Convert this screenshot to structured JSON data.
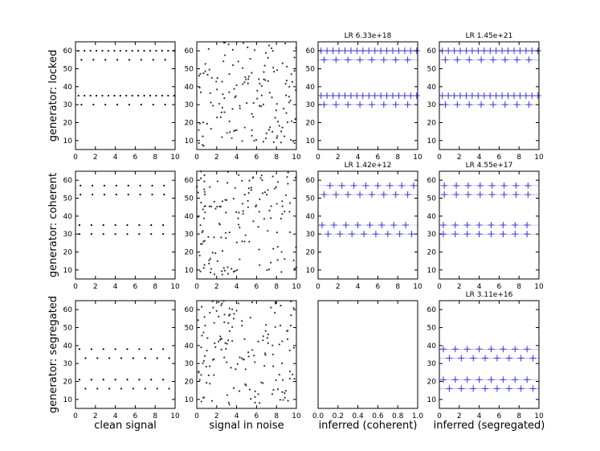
{
  "figure": {
    "row_labels": [
      "generator: locked",
      "generator: coherent",
      "generator: segregated"
    ],
    "col_labels": [
      "clean signal",
      "signal in noise",
      "inferred (coherent)",
      "inferred (segregated)"
    ],
    "colors": {
      "dots": "#000000",
      "noise": "#333333",
      "marker": "#3333dd",
      "axes": "#000000"
    }
  },
  "chart_data": [
    {
      "type": "scatter",
      "row": 0,
      "col": 0,
      "panel": "clean",
      "xlim": [
        0,
        10
      ],
      "ylim": [
        5,
        65
      ],
      "xticks": [
        0,
        2,
        4,
        6,
        8,
        10
      ],
      "yticks": [
        10,
        20,
        30,
        40,
        50,
        60
      ],
      "lr": "",
      "streams": [
        {
          "y": 60,
          "t0": 0.3,
          "dt": 0.6
        },
        {
          "y": 55,
          "t0": 0.6,
          "dt": 1.2
        },
        {
          "y": 35,
          "t0": 0.3,
          "dt": 0.6
        },
        {
          "y": 30,
          "t0": 0.6,
          "dt": 1.2
        }
      ]
    },
    {
      "type": "scatter",
      "row": 0,
      "col": 1,
      "panel": "noise",
      "xlim": [
        0,
        10
      ],
      "ylim": [
        5,
        65
      ],
      "xticks": [
        0,
        2,
        4,
        6,
        8,
        10
      ],
      "yticks": [
        10,
        20,
        30,
        40,
        50,
        60
      ],
      "lr": "",
      "n_noise": 150,
      "seed": 11
    },
    {
      "type": "scatter",
      "row": 0,
      "col": 2,
      "panel": "inferred",
      "xlim": [
        0,
        10
      ],
      "ylim": [
        5,
        65
      ],
      "xticks": [
        0,
        2,
        4,
        6,
        8,
        10
      ],
      "yticks": [
        10,
        20,
        30,
        40,
        50,
        60
      ],
      "lr": "LR 6.33e+18",
      "streams": [
        {
          "y": 60,
          "t0": 0.3,
          "dt": 0.6
        },
        {
          "y": 55,
          "t0": 0.6,
          "dt": 1.2
        },
        {
          "y": 35,
          "t0": 0.3,
          "dt": 0.6
        },
        {
          "y": 30,
          "t0": 0.6,
          "dt": 1.2
        }
      ]
    },
    {
      "type": "scatter",
      "row": 0,
      "col": 3,
      "panel": "inferred",
      "xlim": [
        0,
        10
      ],
      "ylim": [
        5,
        65
      ],
      "xticks": [
        0,
        2,
        4,
        6,
        8,
        10
      ],
      "yticks": [
        10,
        20,
        30,
        40,
        50,
        60
      ],
      "lr": "LR 1.45e+21",
      "streams": [
        {
          "y": 60,
          "t0": 0.3,
          "dt": 0.6
        },
        {
          "y": 55,
          "t0": 0.6,
          "dt": 1.2
        },
        {
          "y": 35,
          "t0": 0.3,
          "dt": 0.6
        },
        {
          "y": 30,
          "t0": 0.6,
          "dt": 1.2
        }
      ]
    },
    {
      "type": "scatter",
      "row": 1,
      "col": 0,
      "panel": "clean",
      "xlim": [
        0,
        10
      ],
      "ylim": [
        5,
        65
      ],
      "xticks": [
        0,
        2,
        4,
        6,
        8,
        10
      ],
      "yticks": [
        10,
        20,
        30,
        40,
        50,
        60
      ],
      "lr": "",
      "streams": [
        {
          "y": 57,
          "t0": 0.5,
          "dt": 1.2
        },
        {
          "y": 52,
          "t0": 0.5,
          "dt": 1.2
        },
        {
          "y": 35,
          "t0": 0.4,
          "dt": 1.2
        },
        {
          "y": 30,
          "t0": 0.4,
          "dt": 1.2
        }
      ]
    },
    {
      "type": "scatter",
      "row": 1,
      "col": 1,
      "panel": "noise",
      "xlim": [
        0,
        10
      ],
      "ylim": [
        5,
        65
      ],
      "xticks": [
        0,
        2,
        4,
        6,
        8,
        10
      ],
      "yticks": [
        10,
        20,
        30,
        40,
        50,
        60
      ],
      "lr": "",
      "n_noise": 150,
      "seed": 23
    },
    {
      "type": "scatter",
      "row": 1,
      "col": 2,
      "panel": "inferred",
      "xlim": [
        0,
        10
      ],
      "ylim": [
        5,
        65
      ],
      "xticks": [
        0,
        2,
        4,
        6,
        8,
        10
      ],
      "yticks": [
        10,
        20,
        30,
        40,
        50,
        60
      ],
      "lr": "LR 1.42e+12",
      "streams": [
        {
          "y": 57,
          "t0": 1.2,
          "dt": 1.2
        },
        {
          "y": 52,
          "t0": 0.6,
          "dt": 1.2
        },
        {
          "y": 35,
          "t0": 0.4,
          "dt": 1.2
        },
        {
          "y": 30,
          "t0": 1.0,
          "dt": 1.2
        }
      ]
    },
    {
      "type": "scatter",
      "row": 1,
      "col": 3,
      "panel": "inferred",
      "xlim": [
        0,
        10
      ],
      "ylim": [
        5,
        65
      ],
      "xticks": [
        0,
        2,
        4,
        6,
        8,
        10
      ],
      "yticks": [
        10,
        20,
        30,
        40,
        50,
        60
      ],
      "lr": "LR 4.55e+17",
      "streams": [
        {
          "y": 57,
          "t0": 0.5,
          "dt": 1.2
        },
        {
          "y": 52,
          "t0": 0.5,
          "dt": 1.2
        },
        {
          "y": 35,
          "t0": 0.4,
          "dt": 1.2
        },
        {
          "y": 30,
          "t0": 0.4,
          "dt": 1.2
        }
      ]
    },
    {
      "type": "scatter",
      "row": 2,
      "col": 0,
      "panel": "clean",
      "xlim": [
        0,
        10
      ],
      "ylim": [
        5,
        65
      ],
      "xticks": [
        0,
        2,
        4,
        6,
        8,
        10
      ],
      "yticks": [
        10,
        20,
        30,
        40,
        50,
        60
      ],
      "lr": "",
      "streams": [
        {
          "y": 38,
          "t0": 0.4,
          "dt": 1.2
        },
        {
          "y": 33,
          "t0": 1.0,
          "dt": 1.2
        },
        {
          "y": 21,
          "t0": 0.4,
          "dt": 1.2
        },
        {
          "y": 16,
          "t0": 1.0,
          "dt": 1.2
        }
      ]
    },
    {
      "type": "scatter",
      "row": 2,
      "col": 1,
      "panel": "noise",
      "xlim": [
        0,
        10
      ],
      "ylim": [
        5,
        65
      ],
      "xticks": [
        0,
        2,
        4,
        6,
        8,
        10
      ],
      "yticks": [
        10,
        20,
        30,
        40,
        50,
        60
      ],
      "lr": "",
      "n_noise": 150,
      "seed": 37
    },
    {
      "type": "scatter",
      "row": 2,
      "col": 2,
      "panel": "empty",
      "xlim": [
        0,
        1
      ],
      "ylim": [
        0,
        1
      ],
      "xticks": [
        "0.0",
        "0.2",
        "0.4",
        "0.6",
        "0.8",
        "1.0"
      ],
      "yticks": [],
      "lr": "",
      "streams": []
    },
    {
      "type": "scatter",
      "row": 2,
      "col": 3,
      "panel": "inferred",
      "xlim": [
        0,
        10
      ],
      "ylim": [
        5,
        65
      ],
      "xticks": [
        0,
        2,
        4,
        6,
        8,
        10
      ],
      "yticks": [
        10,
        20,
        30,
        40,
        50,
        60
      ],
      "lr": "LR 3.11e+16",
      "streams": [
        {
          "y": 38,
          "t0": 0.4,
          "dt": 1.2
        },
        {
          "y": 33,
          "t0": 1.0,
          "dt": 1.2
        },
        {
          "y": 21,
          "t0": 0.4,
          "dt": 1.2
        },
        {
          "y": 16,
          "t0": 1.0,
          "dt": 1.2
        }
      ]
    }
  ]
}
